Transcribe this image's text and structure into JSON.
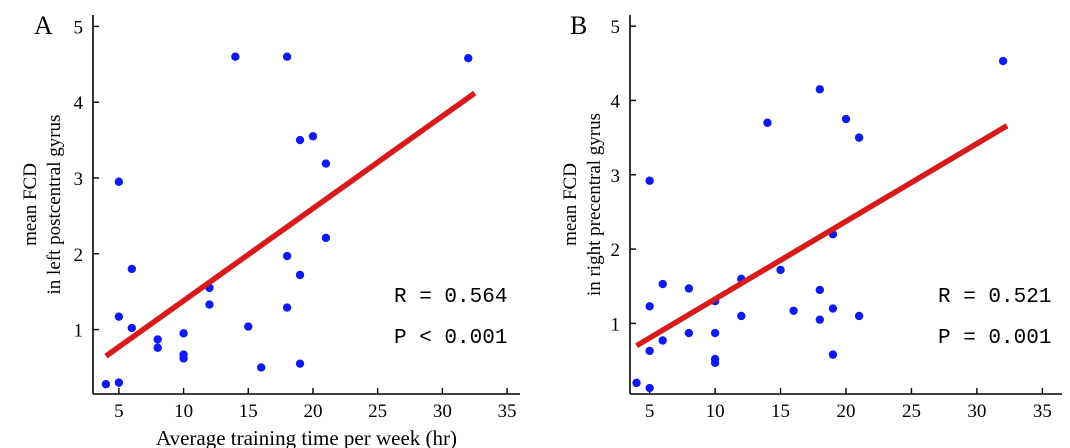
{
  "chart_data": [
    {
      "type": "scatter",
      "panel": "A",
      "xlabel": "Average training time per week (hr)",
      "ylabel_line1": "mean FCD",
      "ylabel_line2": "in left postcentral gyrus",
      "xlim": [
        3,
        36
      ],
      "ylim": [
        0.15,
        5.15
      ],
      "xticks": [
        5,
        10,
        15,
        20,
        25,
        30,
        35
      ],
      "yticks": [
        1,
        2,
        3,
        4,
        5
      ],
      "stats": [
        "R = 0.564",
        "P < 0.001"
      ],
      "points": [
        [
          4,
          0.28
        ],
        [
          5,
          0.3
        ],
        [
          5,
          2.95
        ],
        [
          5,
          1.17
        ],
        [
          6,
          1.8
        ],
        [
          6,
          1.02
        ],
        [
          8,
          0.87
        ],
        [
          8,
          0.76
        ],
        [
          10,
          0.95
        ],
        [
          10,
          0.67
        ],
        [
          10,
          0.62
        ],
        [
          12,
          1.55
        ],
        [
          12,
          1.33
        ],
        [
          14,
          4.6
        ],
        [
          15,
          1.04
        ],
        [
          16,
          0.5
        ],
        [
          18,
          4.6
        ],
        [
          18,
          1.97
        ],
        [
          18,
          1.29
        ],
        [
          19,
          3.5
        ],
        [
          19,
          1.72
        ],
        [
          19,
          0.55
        ],
        [
          20,
          3.55
        ],
        [
          21,
          3.19
        ],
        [
          21,
          2.21
        ],
        [
          32,
          4.58
        ]
      ],
      "fit_line": [
        [
          4,
          0.65
        ],
        [
          32.5,
          4.12
        ]
      ],
      "point_color": "#0d1bf0",
      "line_color": "#d71a1a"
    },
    {
      "type": "scatter",
      "panel": "B",
      "xlabel": "",
      "ylabel_line1": "mean FCD",
      "ylabel_line2": "in right precentral gyrus",
      "xlim": [
        3.5,
        36.5
      ],
      "ylim": [
        0.05,
        5.15
      ],
      "xticks": [
        5,
        10,
        15,
        20,
        25,
        30,
        35
      ],
      "yticks": [
        1,
        2,
        3,
        4,
        5
      ],
      "stats": [
        "R = 0.521",
        "P = 0.001"
      ],
      "points": [
        [
          4,
          0.2
        ],
        [
          5,
          0.13
        ],
        [
          5,
          2.92
        ],
        [
          5,
          1.23
        ],
        [
          5,
          0.63
        ],
        [
          6,
          1.53
        ],
        [
          6,
          0.77
        ],
        [
          8,
          1.47
        ],
        [
          8,
          0.87
        ],
        [
          10,
          1.3
        ],
        [
          10,
          0.87
        ],
        [
          10,
          0.52
        ],
        [
          10,
          0.47
        ],
        [
          12,
          1.6
        ],
        [
          12,
          1.1
        ],
        [
          14,
          3.7
        ],
        [
          15,
          1.72
        ],
        [
          16,
          1.17
        ],
        [
          18,
          4.15
        ],
        [
          18,
          1.45
        ],
        [
          18,
          1.05
        ],
        [
          19,
          2.2
        ],
        [
          19,
          1.2
        ],
        [
          19,
          0.58
        ],
        [
          20,
          3.75
        ],
        [
          21,
          3.5
        ],
        [
          21,
          1.1
        ],
        [
          32,
          4.53
        ]
      ],
      "fit_line": [
        [
          4,
          0.7
        ],
        [
          32.3,
          3.66
        ]
      ],
      "point_color": "#0d1bf0",
      "line_color": "#d71a1a"
    }
  ]
}
